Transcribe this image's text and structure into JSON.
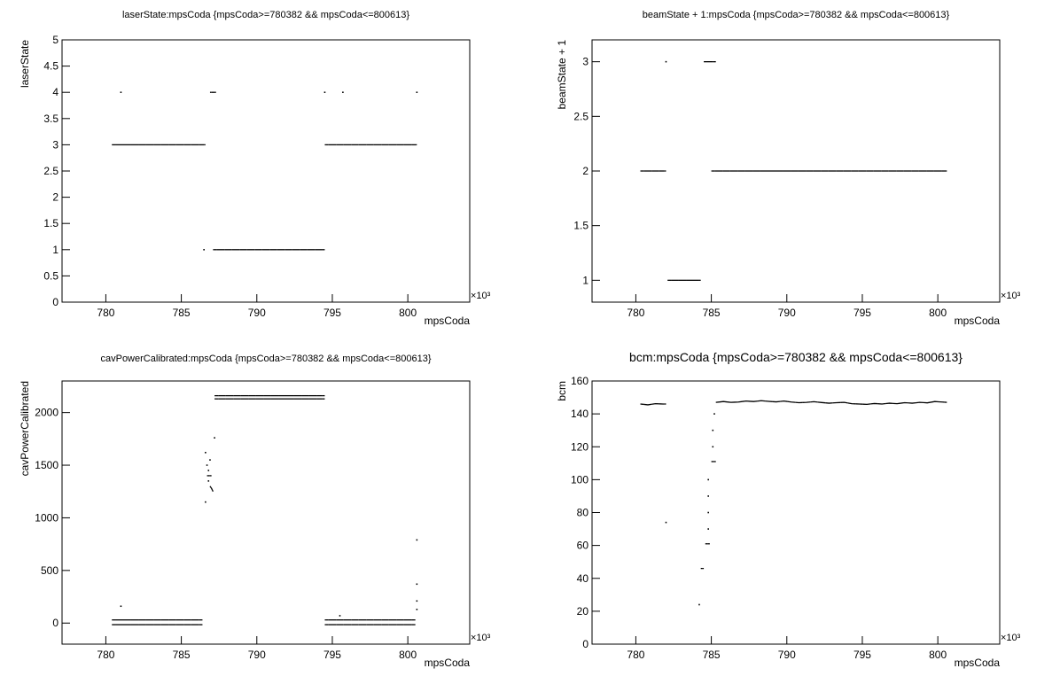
{
  "chart_data": [
    {
      "type": "scatter",
      "title": "laserState:mpsCoda {mpsCoda>=780382 && mpsCoda<=800613}",
      "x_label": "mpsCoda",
      "y_label": "laserState",
      "x_multiplier": "×10³",
      "color": "#000000",
      "xlim": [
        777.1,
        804.1
      ],
      "xticks": [
        780,
        785,
        790,
        795,
        800
      ],
      "ylim": [
        0,
        5
      ],
      "yticks": [
        0,
        0.5,
        1,
        1.5,
        2,
        2.5,
        3,
        3.5,
        4,
        4.5,
        5
      ],
      "x": [
        780.4,
        780.9,
        781.4,
        781.9,
        782.4,
        782.9,
        783.4,
        783.9,
        784.4,
        784.9,
        785.4,
        785.9,
        786.4,
        786.6,
        781.0,
        786.9,
        787.1,
        787.3,
        794.5,
        795.7,
        800.6,
        786.5,
        787.1,
        787.6,
        788.1,
        788.6,
        789.1,
        789.6,
        790.1,
        790.6,
        791.1,
        791.6,
        792.1,
        792.6,
        793.1,
        793.6,
        794.1,
        794.5,
        794.5,
        795.0,
        795.5,
        796.0,
        796.5,
        797.0,
        797.5,
        798.0,
        798.5,
        799.0,
        799.5,
        800.0,
        800.5,
        800.6
      ],
      "y": [
        3,
        3,
        3,
        3,
        3,
        3,
        3,
        3,
        3,
        3,
        3,
        3,
        3,
        3,
        4,
        4,
        4,
        4,
        4,
        4,
        4,
        1,
        1,
        1,
        1,
        1,
        1,
        1,
        1,
        1,
        1,
        1,
        1,
        1,
        1,
        1,
        1,
        1,
        3,
        3,
        3,
        3,
        3,
        3,
        3,
        3,
        3,
        3,
        3,
        3,
        3,
        3
      ]
    },
    {
      "type": "scatter",
      "title": "beamState + 1:mpsCoda {mpsCoda>=780382 && mpsCoda<=800613}",
      "x_label": "mpsCoda",
      "y_label": "beamState + 1",
      "x_multiplier": "×10³",
      "color": "#000000",
      "xlim": [
        777.1,
        804.1
      ],
      "xticks": [
        780,
        785,
        790,
        795,
        800
      ],
      "ylim": [
        0.8,
        3.2
      ],
      "yticks": [
        1,
        1.5,
        2,
        2.5,
        3
      ],
      "x": [
        780.3,
        780.8,
        781.3,
        781.8,
        782.0,
        782.0,
        782.1,
        782.6,
        783.1,
        783.6,
        784.1,
        784.3,
        784.5,
        784.9,
        785.3,
        785.0,
        785.5,
        786.0,
        786.5,
        787.0,
        787.5,
        788.0,
        788.5,
        789.0,
        789.5,
        790.0,
        790.5,
        791.0,
        791.5,
        792.0,
        792.5,
        793.0,
        793.5,
        794.0,
        794.5,
        795.0,
        795.5,
        796.0,
        796.5,
        797.0,
        797.5,
        798.0,
        798.5,
        799.0,
        799.5,
        800.0,
        800.5,
        800.6
      ],
      "y": [
        2,
        2,
        2,
        2,
        2,
        3,
        1,
        1,
        1,
        1,
        1,
        1,
        3,
        3,
        3,
        2,
        2,
        2,
        2,
        2,
        2,
        2,
        2,
        2,
        2,
        2,
        2,
        2,
        2,
        2,
        2,
        2,
        2,
        2,
        2,
        2,
        2,
        2,
        2,
        2,
        2,
        2,
        2,
        2,
        2,
        2,
        2,
        2
      ]
    },
    {
      "type": "scatter",
      "title": "cavPowerCalibrated:mpsCoda {mpsCoda>=780382 && mpsCoda<=800613}",
      "x_label": "mpsCoda",
      "y_label": "cavPowerCalibrated",
      "x_multiplier": "×10³",
      "color": "#000000",
      "xlim": [
        777.1,
        804.1
      ],
      "xticks": [
        780,
        785,
        790,
        795,
        800
      ],
      "ylim": [
        -200,
        2300
      ],
      "yticks": [
        0,
        500,
        1000,
        1500,
        2000
      ],
      "x": [
        780.4,
        780.9,
        781.4,
        781.9,
        782.4,
        782.9,
        783.4,
        783.9,
        784.4,
        784.9,
        785.4,
        785.9,
        786.4,
        780.4,
        780.9,
        781.4,
        781.9,
        782.4,
        782.9,
        783.4,
        783.9,
        784.4,
        784.9,
        785.4,
        785.9,
        786.4,
        786.6,
        786.6,
        786.7,
        786.7,
        786.8,
        786.8,
        786.9,
        786.9,
        787.0,
        787.0,
        787.1,
        787.2,
        787.2,
        787.7,
        788.2,
        788.7,
        789.2,
        789.7,
        790.2,
        790.7,
        791.2,
        791.7,
        792.2,
        792.7,
        793.2,
        793.7,
        794.2,
        794.5,
        787.2,
        787.7,
        788.2,
        788.7,
        789.2,
        789.7,
        790.2,
        790.7,
        791.2,
        791.7,
        792.2,
        792.7,
        793.2,
        793.7,
        794.2,
        794.5,
        794.5,
        795.0,
        795.5,
        796.0,
        796.5,
        797.0,
        797.5,
        798.0,
        798.5,
        799.0,
        799.5,
        800.0,
        800.5,
        794.5,
        795.0,
        795.5,
        796.0,
        796.5,
        797.0,
        797.5,
        798.0,
        798.5,
        799.0,
        799.5,
        800.0,
        800.5,
        781.0,
        795.5,
        800.6,
        800.6,
        800.6,
        800.6
      ],
      "y": [
        30,
        30,
        30,
        30,
        30,
        30,
        30,
        30,
        30,
        30,
        30,
        30,
        30,
        -15,
        -15,
        -15,
        -15,
        -15,
        -15,
        -15,
        -15,
        -15,
        -15,
        -15,
        -15,
        -15,
        1150,
        1620,
        1400,
        1500,
        1350,
        1450,
        1300,
        1550,
        1280,
        1400,
        1250,
        1760,
        2160,
        2160,
        2160,
        2160,
        2160,
        2160,
        2160,
        2160,
        2160,
        2160,
        2160,
        2160,
        2160,
        2160,
        2160,
        2160,
        2130,
        2130,
        2130,
        2130,
        2130,
        2130,
        2130,
        2130,
        2130,
        2130,
        2130,
        2130,
        2130,
        2130,
        2130,
        2130,
        30,
        30,
        30,
        30,
        30,
        30,
        30,
        30,
        30,
        30,
        30,
        30,
        30,
        -15,
        -15,
        -15,
        -15,
        -15,
        -15,
        -15,
        -15,
        -15,
        -15,
        -15,
        -15,
        -15,
        160,
        70,
        790,
        370,
        210,
        130
      ]
    },
    {
      "type": "scatter",
      "title": "bcm:mpsCoda {mpsCoda>=780382 && mpsCoda<=800613}",
      "x_label": "mpsCoda",
      "y_label": "bcm",
      "x_multiplier": "×10³",
      "color": "#000000",
      "xlim": [
        777.1,
        804.1
      ],
      "xticks": [
        780,
        785,
        790,
        795,
        800
      ],
      "ylim": [
        0,
        160
      ],
      "yticks": [
        0,
        20,
        40,
        60,
        80,
        100,
        120,
        140,
        160
      ],
      "x": [
        780.3,
        780.8,
        781.3,
        781.8,
        782.0,
        782.0,
        784.2,
        784.3,
        784.5,
        784.6,
        784.9,
        784.8,
        784.8,
        784.8,
        784.8,
        785.0,
        785.3,
        785.1,
        785.1,
        785.2,
        785.3,
        785.8,
        786.3,
        786.8,
        787.3,
        787.8,
        788.3,
        788.8,
        789.3,
        789.8,
        790.3,
        790.8,
        791.3,
        791.8,
        792.3,
        792.8,
        793.3,
        793.8,
        794.3,
        794.8,
        795.3,
        795.8,
        796.3,
        796.8,
        797.3,
        797.8,
        798.3,
        798.8,
        799.3,
        799.8,
        800.3,
        800.6
      ],
      "y": [
        146,
        145.5,
        146.2,
        146,
        146,
        74,
        24,
        46,
        46,
        61,
        61,
        70,
        80,
        90,
        100,
        111,
        111,
        120,
        130,
        140,
        147,
        147.5,
        147,
        147.2,
        147.8,
        147.5,
        148,
        147.6,
        147.3,
        147.8,
        147.2,
        146.8,
        147,
        147.4,
        146.9,
        146.5,
        146.8,
        147,
        146.2,
        146,
        145.8,
        146.3,
        146,
        146.5,
        146.2,
        146.8,
        146.5,
        147,
        146.7,
        147.5,
        147.2,
        147
      ]
    }
  ]
}
